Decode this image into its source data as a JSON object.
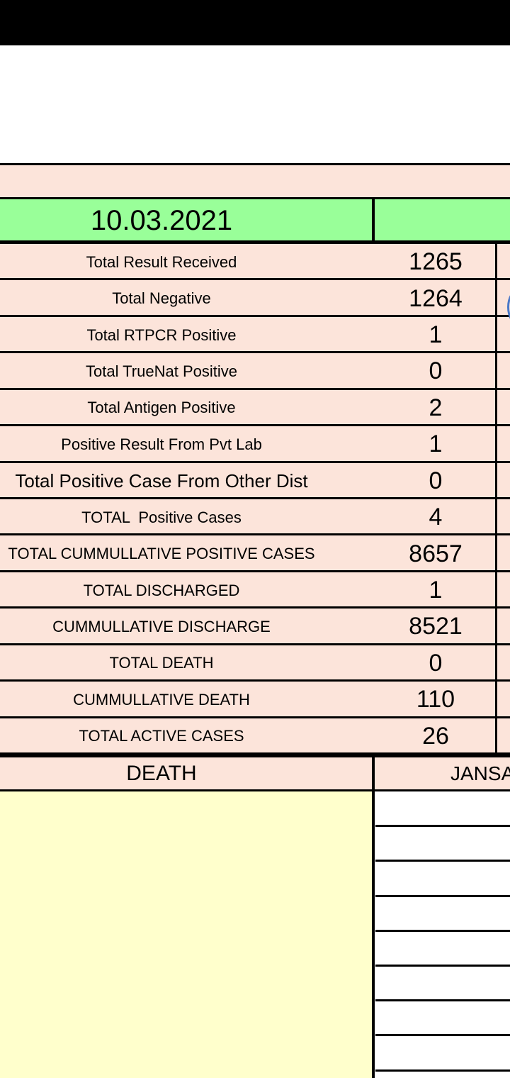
{
  "table": {
    "date": "10.03.2021",
    "rows": [
      [
        "Total Result Received",
        1265
      ],
      [
        "Total Negative",
        1264
      ],
      [
        "Total RTPCR Positive",
        1
      ],
      [
        "Total TrueNat Positive",
        0
      ],
      [
        "Total Antigen Positive",
        2
      ],
      [
        "Positive Result From Pvt Lab",
        1
      ],
      [
        "Total Positive Case From Other Dist",
        0
      ],
      [
        "TOTAL  Positive Cases",
        4
      ],
      [
        "TOTAL CUMMULLATIVE POSITIVE CASES",
        8657
      ],
      [
        "TOTAL DISCHARGED",
        1
      ],
      [
        "CUMMULLATIVE DISCHARGE",
        8521
      ],
      [
        "TOTAL DEATH",
        0
      ],
      [
        "CUMMULLATIVE DEATH",
        110
      ],
      [
        "TOTAL ACTIVE CASES",
        26
      ]
    ],
    "death_header": "DEATH",
    "right_header": "JANSA"
  }
}
